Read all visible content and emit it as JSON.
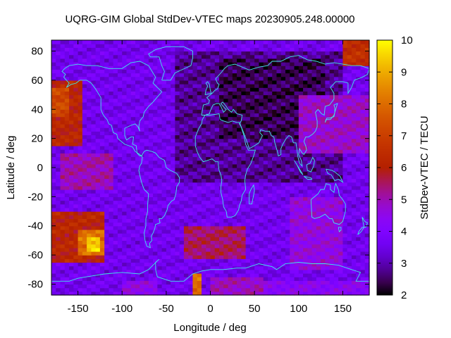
{
  "chart_data": {
    "type": "heatmap",
    "title": "UQRG-GIM Global StdDev-VTEC maps 20230905.248.00000",
    "xlabel": "Longitude / deg",
    "ylabel": "Latitude / deg",
    "colorbar_label": "StdDev-VTEC / TECU",
    "xlim": [
      -180,
      180
    ],
    "ylim": [
      -87.5,
      87.5
    ],
    "x_ticks": [
      "-150",
      "-100",
      "-50",
      "0",
      "50",
      "100",
      "150"
    ],
    "x_tick_values": [
      -150,
      -100,
      -50,
      0,
      50,
      100,
      150
    ],
    "y_ticks": [
      "80",
      "60",
      "40",
      "20",
      "0",
      "-20",
      "-40",
      "-60",
      "-80"
    ],
    "y_tick_values": [
      80,
      60,
      40,
      20,
      0,
      -20,
      -40,
      -60,
      -80
    ],
    "colorbar_range": [
      2,
      10
    ],
    "colorbar_ticks": [
      "2",
      "3",
      "4",
      "5",
      "6",
      "7",
      "8",
      "9",
      "10"
    ],
    "colorbar_tick_values": [
      2,
      3,
      4,
      5,
      6,
      7,
      8,
      9,
      10
    ],
    "grid_resolution": {
      "lon_step": 5,
      "lat_step": 2.5
    },
    "colormap": "gnuplot-hot",
    "regions": [
      {
        "lon": [
          -180,
          180
        ],
        "lat": [
          -87.5,
          87.5
        ],
        "value": 3.6
      },
      {
        "lon": [
          -40,
          150
        ],
        "lat": [
          -10,
          80
        ],
        "value": 2.8
      },
      {
        "lon": [
          10,
          130
        ],
        "lat": [
          20,
          75
        ],
        "value": 2.4
      },
      {
        "lon": [
          -180,
          -145
        ],
        "lat": [
          15,
          60
        ],
        "value": 6.2
      },
      {
        "lon": [
          -180,
          -160
        ],
        "lat": [
          35,
          55
        ],
        "value": 7.2
      },
      {
        "lon": [
          -170,
          -110
        ],
        "lat": [
          -15,
          10
        ],
        "value": 5.0
      },
      {
        "lon": [
          -180,
          -120
        ],
        "lat": [
          -65,
          -30
        ],
        "value": 6.2
      },
      {
        "lon": [
          -150,
          -120
        ],
        "lat": [
          -60,
          -42
        ],
        "value": 8.0
      },
      {
        "lon": [
          -140,
          -125
        ],
        "lat": [
          -57,
          -48
        ],
        "value": 9.5
      },
      {
        "lon": [
          -30,
          40
        ],
        "lat": [
          -62,
          -40
        ],
        "value": 5.5
      },
      {
        "lon": [
          -20,
          -10
        ],
        "lat": [
          -87.5,
          -72
        ],
        "value": 8.0
      },
      {
        "lon": [
          100,
          180
        ],
        "lat": [
          10,
          50
        ],
        "value": 4.8
      },
      {
        "lon": [
          150,
          180
        ],
        "lat": [
          70,
          87.5
        ],
        "value": 6.5
      },
      {
        "lon": [
          90,
          150
        ],
        "lat": [
          -70,
          -20
        ],
        "value": 4.6
      },
      {
        "lon": [
          0,
          60
        ],
        "lat": [
          -87.5,
          -75
        ],
        "value": 4.9
      },
      {
        "lon": [
          60,
          180
        ],
        "lat": [
          -87.5,
          -78
        ],
        "value": 4.3
      },
      {
        "lon": [
          -100,
          -60
        ],
        "lat": [
          -87.5,
          -78
        ],
        "value": 4.5
      }
    ]
  }
}
